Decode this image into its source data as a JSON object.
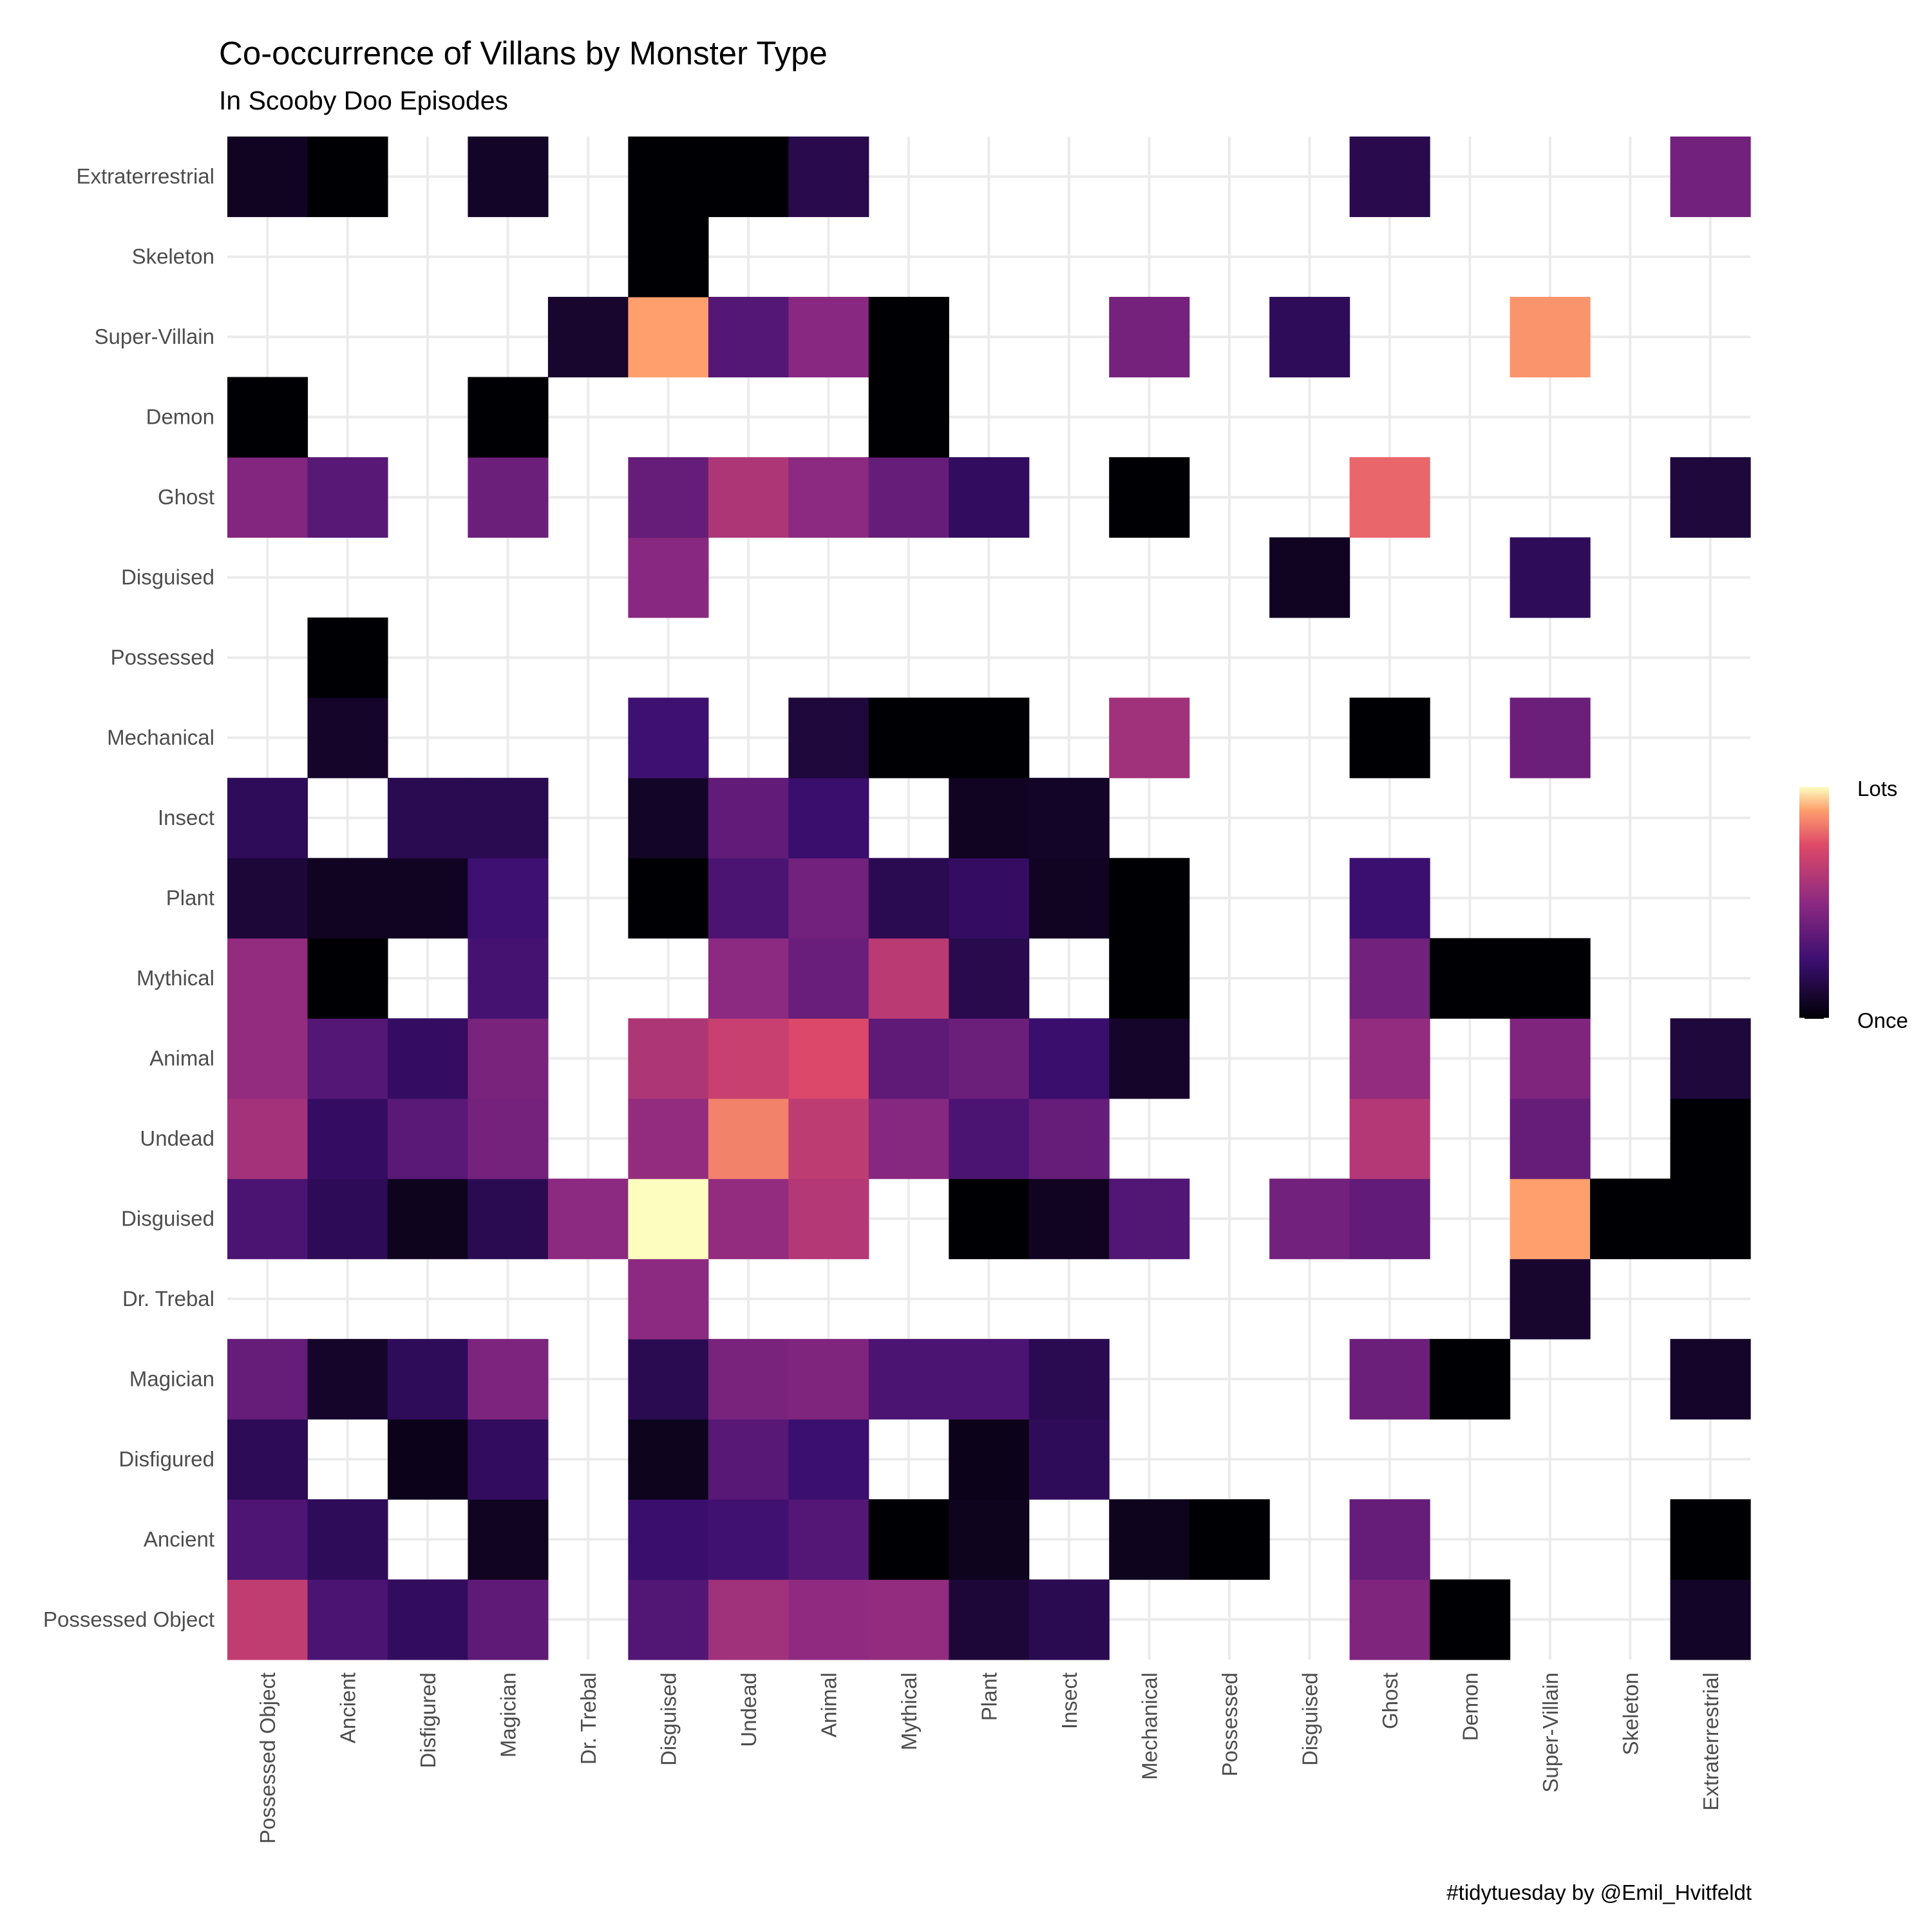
{
  "chart_data": {
    "type": "heatmap",
    "title": "Co-occurrence of Villans by Monster Type",
    "subtitle": "In Scooby Doo Episodes",
    "caption": "#tidytuesday by @Emil_Hvitfeldt",
    "x_categories": [
      "Possessed Object",
      "Ancient",
      "Disfigured",
      "Magician",
      "Dr. Trebal",
      "Disguised",
      "Undead",
      "Animal",
      "Mythical",
      "Plant",
      "Insect",
      "Mechanical",
      "Possessed",
      "Disguised",
      "Ghost",
      "Demon",
      "Super-Villain",
      "Skeleton",
      "Extraterrestrial"
    ],
    "y_categories": [
      "Possessed Object",
      "Ancient",
      "Disfigured",
      "Magician",
      "Dr. Trebal",
      "Disguised",
      "Undead",
      "Animal",
      "Mythical",
      "Plant",
      "Insect",
      "Mechanical",
      "Possessed",
      "Disguised",
      "Ghost",
      "Demon",
      "Super-Villain",
      "Skeleton",
      "Extraterrestrial"
    ],
    "value_scale": "relative co-occurrence intensity, 0 = Once, 1 = Lots",
    "colormap": "magma",
    "legend": {
      "high_label": "Lots",
      "low_label": "Once",
      "position": "right"
    },
    "grid": true,
    "cells": [
      {
        "x": 0,
        "y": 0,
        "v": 0.66
      },
      {
        "x": 1,
        "y": 0,
        "v": 0.3
      },
      {
        "x": 2,
        "y": 0,
        "v": 0.21
      },
      {
        "x": 3,
        "y": 0,
        "v": 0.36
      },
      {
        "x": 5,
        "y": 0,
        "v": 0.32
      },
      {
        "x": 6,
        "y": 0,
        "v": 0.56
      },
      {
        "x": 7,
        "y": 0,
        "v": 0.51
      },
      {
        "x": 8,
        "y": 0,
        "v": 0.52
      },
      {
        "x": 9,
        "y": 0,
        "v": 0.12
      },
      {
        "x": 10,
        "y": 0,
        "v": 0.18
      },
      {
        "x": 14,
        "y": 0,
        "v": 0.46
      },
      {
        "x": 15,
        "y": 0,
        "v": 0.0
      },
      {
        "x": 18,
        "y": 0,
        "v": 0.08
      },
      {
        "x": 0,
        "y": 1,
        "v": 0.31
      },
      {
        "x": 1,
        "y": 1,
        "v": 0.2
      },
      {
        "x": 3,
        "y": 1,
        "v": 0.07
      },
      {
        "x": 5,
        "y": 1,
        "v": 0.24
      },
      {
        "x": 6,
        "y": 1,
        "v": 0.27
      },
      {
        "x": 7,
        "y": 1,
        "v": 0.33
      },
      {
        "x": 8,
        "y": 1,
        "v": 0.0
      },
      {
        "x": 9,
        "y": 1,
        "v": 0.06
      },
      {
        "x": 11,
        "y": 1,
        "v": 0.06
      },
      {
        "x": 12,
        "y": 1,
        "v": 0.0
      },
      {
        "x": 14,
        "y": 1,
        "v": 0.38
      },
      {
        "x": 18,
        "y": 1,
        "v": 0.0
      },
      {
        "x": 0,
        "y": 2,
        "v": 0.19
      },
      {
        "x": 2,
        "y": 2,
        "v": 0.05
      },
      {
        "x": 3,
        "y": 2,
        "v": 0.21
      },
      {
        "x": 5,
        "y": 2,
        "v": 0.06
      },
      {
        "x": 6,
        "y": 2,
        "v": 0.34
      },
      {
        "x": 7,
        "y": 2,
        "v": 0.25
      },
      {
        "x": 9,
        "y": 2,
        "v": 0.05
      },
      {
        "x": 10,
        "y": 2,
        "v": 0.2
      },
      {
        "x": 0,
        "y": 3,
        "v": 0.38
      },
      {
        "x": 1,
        "y": 3,
        "v": 0.09
      },
      {
        "x": 2,
        "y": 3,
        "v": 0.2
      },
      {
        "x": 3,
        "y": 3,
        "v": 0.45
      },
      {
        "x": 5,
        "y": 3,
        "v": 0.18
      },
      {
        "x": 6,
        "y": 3,
        "v": 0.44
      },
      {
        "x": 7,
        "y": 3,
        "v": 0.46
      },
      {
        "x": 8,
        "y": 3,
        "v": 0.3
      },
      {
        "x": 9,
        "y": 3,
        "v": 0.3
      },
      {
        "x": 10,
        "y": 3,
        "v": 0.18
      },
      {
        "x": 14,
        "y": 3,
        "v": 0.4
      },
      {
        "x": 15,
        "y": 3,
        "v": 0.0
      },
      {
        "x": 18,
        "y": 3,
        "v": 0.09
      },
      {
        "x": 5,
        "y": 4,
        "v": 0.5
      },
      {
        "x": 16,
        "y": 4,
        "v": 0.1
      },
      {
        "x": 0,
        "y": 5,
        "v": 0.3
      },
      {
        "x": 1,
        "y": 5,
        "v": 0.19
      },
      {
        "x": 2,
        "y": 5,
        "v": 0.06
      },
      {
        "x": 3,
        "y": 5,
        "v": 0.18
      },
      {
        "x": 4,
        "y": 5,
        "v": 0.5
      },
      {
        "x": 5,
        "y": 5,
        "v": 1.0
      },
      {
        "x": 6,
        "y": 5,
        "v": 0.52
      },
      {
        "x": 7,
        "y": 5,
        "v": 0.62
      },
      {
        "x": 9,
        "y": 5,
        "v": 0.0
      },
      {
        "x": 10,
        "y": 5,
        "v": 0.07
      },
      {
        "x": 11,
        "y": 5,
        "v": 0.32
      },
      {
        "x": 13,
        "y": 5,
        "v": 0.42
      },
      {
        "x": 14,
        "y": 5,
        "v": 0.37
      },
      {
        "x": 16,
        "y": 5,
        "v": 0.9
      },
      {
        "x": 17,
        "y": 5,
        "v": 0.0
      },
      {
        "x": 18,
        "y": 5,
        "v": 0.0
      },
      {
        "x": 0,
        "y": 6,
        "v": 0.57
      },
      {
        "x": 1,
        "y": 6,
        "v": 0.22
      },
      {
        "x": 2,
        "y": 6,
        "v": 0.35
      },
      {
        "x": 3,
        "y": 6,
        "v": 0.43
      },
      {
        "x": 5,
        "y": 6,
        "v": 0.52
      },
      {
        "x": 6,
        "y": 6,
        "v": 0.85
      },
      {
        "x": 7,
        "y": 6,
        "v": 0.65
      },
      {
        "x": 8,
        "y": 6,
        "v": 0.48
      },
      {
        "x": 9,
        "y": 6,
        "v": 0.3
      },
      {
        "x": 10,
        "y": 6,
        "v": 0.38
      },
      {
        "x": 14,
        "y": 6,
        "v": 0.62
      },
      {
        "x": 16,
        "y": 6,
        "v": 0.38
      },
      {
        "x": 18,
        "y": 6,
        "v": 0.0
      },
      {
        "x": 0,
        "y": 7,
        "v": 0.52
      },
      {
        "x": 1,
        "y": 7,
        "v": 0.33
      },
      {
        "x": 2,
        "y": 7,
        "v": 0.22
      },
      {
        "x": 3,
        "y": 7,
        "v": 0.44
      },
      {
        "x": 5,
        "y": 7,
        "v": 0.6
      },
      {
        "x": 6,
        "y": 7,
        "v": 0.68
      },
      {
        "x": 7,
        "y": 7,
        "v": 0.74
      },
      {
        "x": 8,
        "y": 7,
        "v": 0.36
      },
      {
        "x": 9,
        "y": 7,
        "v": 0.4
      },
      {
        "x": 10,
        "y": 7,
        "v": 0.24
      },
      {
        "x": 11,
        "y": 7,
        "v": 0.09
      },
      {
        "x": 14,
        "y": 7,
        "v": 0.52
      },
      {
        "x": 16,
        "y": 7,
        "v": 0.46
      },
      {
        "x": 18,
        "y": 7,
        "v": 0.13
      },
      {
        "x": 0,
        "y": 8,
        "v": 0.52
      },
      {
        "x": 1,
        "y": 8,
        "v": 0.0
      },
      {
        "x": 3,
        "y": 8,
        "v": 0.28
      },
      {
        "x": 6,
        "y": 8,
        "v": 0.5
      },
      {
        "x": 7,
        "y": 8,
        "v": 0.39
      },
      {
        "x": 8,
        "y": 8,
        "v": 0.64
      },
      {
        "x": 9,
        "y": 8,
        "v": 0.17
      },
      {
        "x": 11,
        "y": 8,
        "v": 0.0
      },
      {
        "x": 14,
        "y": 8,
        "v": 0.42
      },
      {
        "x": 15,
        "y": 8,
        "v": 0.0
      },
      {
        "x": 16,
        "y": 8,
        "v": 0.0
      },
      {
        "x": 0,
        "y": 9,
        "v": 0.12
      },
      {
        "x": 1,
        "y": 9,
        "v": 0.07
      },
      {
        "x": 2,
        "y": 9,
        "v": 0.07
      },
      {
        "x": 3,
        "y": 9,
        "v": 0.26
      },
      {
        "x": 5,
        "y": 9,
        "v": 0.0
      },
      {
        "x": 6,
        "y": 9,
        "v": 0.3
      },
      {
        "x": 7,
        "y": 9,
        "v": 0.42
      },
      {
        "x": 8,
        "y": 9,
        "v": 0.18
      },
      {
        "x": 9,
        "y": 9,
        "v": 0.22
      },
      {
        "x": 10,
        "y": 9,
        "v": 0.07
      },
      {
        "x": 11,
        "y": 9,
        "v": 0.0
      },
      {
        "x": 14,
        "y": 9,
        "v": 0.25
      },
      {
        "x": 0,
        "y": 10,
        "v": 0.2
      },
      {
        "x": 2,
        "y": 10,
        "v": 0.18
      },
      {
        "x": 3,
        "y": 10,
        "v": 0.18
      },
      {
        "x": 5,
        "y": 10,
        "v": 0.08
      },
      {
        "x": 6,
        "y": 10,
        "v": 0.37
      },
      {
        "x": 7,
        "y": 10,
        "v": 0.24
      },
      {
        "x": 9,
        "y": 10,
        "v": 0.07
      },
      {
        "x": 10,
        "y": 10,
        "v": 0.08
      },
      {
        "x": 1,
        "y": 11,
        "v": 0.09
      },
      {
        "x": 5,
        "y": 11,
        "v": 0.26
      },
      {
        "x": 7,
        "y": 11,
        "v": 0.13
      },
      {
        "x": 8,
        "y": 11,
        "v": 0.0
      },
      {
        "x": 9,
        "y": 11,
        "v": 0.0
      },
      {
        "x": 11,
        "y": 11,
        "v": 0.56
      },
      {
        "x": 14,
        "y": 11,
        "v": 0.0
      },
      {
        "x": 16,
        "y": 11,
        "v": 0.4
      },
      {
        "x": 1,
        "y": 12,
        "v": 0.0
      },
      {
        "x": 5,
        "y": 13,
        "v": 0.49
      },
      {
        "x": 13,
        "y": 13,
        "v": 0.07
      },
      {
        "x": 16,
        "y": 13,
        "v": 0.2
      },
      {
        "x": 0,
        "y": 14,
        "v": 0.47
      },
      {
        "x": 1,
        "y": 14,
        "v": 0.34
      },
      {
        "x": 3,
        "y": 14,
        "v": 0.4
      },
      {
        "x": 5,
        "y": 14,
        "v": 0.38
      },
      {
        "x": 6,
        "y": 14,
        "v": 0.6
      },
      {
        "x": 7,
        "y": 14,
        "v": 0.5
      },
      {
        "x": 8,
        "y": 14,
        "v": 0.38
      },
      {
        "x": 9,
        "y": 14,
        "v": 0.21
      },
      {
        "x": 11,
        "y": 14,
        "v": 0.0
      },
      {
        "x": 14,
        "y": 14,
        "v": 0.8
      },
      {
        "x": 18,
        "y": 14,
        "v": 0.13
      },
      {
        "x": 0,
        "y": 15,
        "v": 0.0
      },
      {
        "x": 3,
        "y": 15,
        "v": 0.0
      },
      {
        "x": 8,
        "y": 15,
        "v": 0.0
      },
      {
        "x": 4,
        "y": 16,
        "v": 0.1
      },
      {
        "x": 5,
        "y": 16,
        "v": 0.9
      },
      {
        "x": 6,
        "y": 16,
        "v": 0.33
      },
      {
        "x": 7,
        "y": 16,
        "v": 0.49
      },
      {
        "x": 8,
        "y": 16,
        "v": 0.0
      },
      {
        "x": 11,
        "y": 16,
        "v": 0.43
      },
      {
        "x": 13,
        "y": 16,
        "v": 0.2
      },
      {
        "x": 16,
        "y": 16,
        "v": 0.88
      },
      {
        "x": 5,
        "y": 17,
        "v": 0.0
      },
      {
        "x": 0,
        "y": 18,
        "v": 0.07
      },
      {
        "x": 1,
        "y": 18,
        "v": 0.0
      },
      {
        "x": 3,
        "y": 18,
        "v": 0.08
      },
      {
        "x": 5,
        "y": 18,
        "v": 0.0
      },
      {
        "x": 6,
        "y": 18,
        "v": 0.0
      },
      {
        "x": 7,
        "y": 18,
        "v": 0.17
      },
      {
        "x": 14,
        "y": 18,
        "v": 0.17
      },
      {
        "x": 18,
        "y": 18,
        "v": 0.42
      }
    ]
  }
}
